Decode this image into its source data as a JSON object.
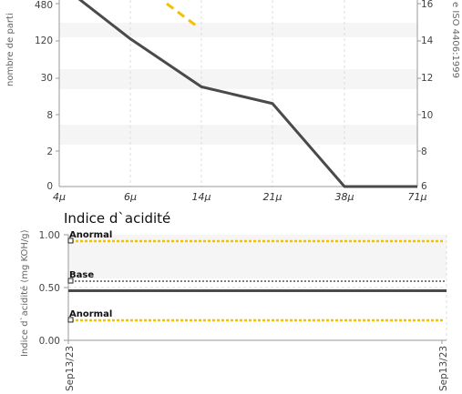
{
  "chart_data": [
    {
      "type": "line",
      "ylabel": "nombre de parti",
      "y2label": "e ISO 4406:1999",
      "categories": [
        "4µ",
        "6µ",
        "14µ",
        "21µ",
        "38µ",
        "71µ"
      ],
      "y_ticks": [
        "480",
        "120",
        "30",
        "8",
        "2",
        "0"
      ],
      "y2_ticks": [
        "16",
        "14",
        "12",
        "10",
        "8",
        "6"
      ],
      "series": [
        {
          "values": [
            480,
            130,
            22,
            12,
            0,
            0
          ],
          "color": "#4a4a4a"
        }
      ],
      "overlay": {
        "color": "#f2c200",
        "style": "dashed"
      },
      "grid": true
    },
    {
      "type": "line",
      "title": "Indice d`acidité",
      "ylabel": "Indice d`acidité (mg KOH/g)",
      "ylim": [
        0,
        1.0
      ],
      "y_ticks": [
        "1.00",
        "0.50",
        "0.00"
      ],
      "x_ticks": [
        "Sep13/23",
        "Sep13/23"
      ],
      "series": [
        {
          "values": [
            0.47,
            0.47
          ],
          "color": "#4a4a4a"
        }
      ],
      "thresholds": [
        {
          "label": "Anormal",
          "value": 0.94,
          "color": "#f2c200"
        },
        {
          "label": "Base",
          "value": 0.56,
          "color": "#555555"
        },
        {
          "label": "Anormal",
          "value": 0.19,
          "color": "#f2c200"
        }
      ],
      "grid": true
    }
  ]
}
